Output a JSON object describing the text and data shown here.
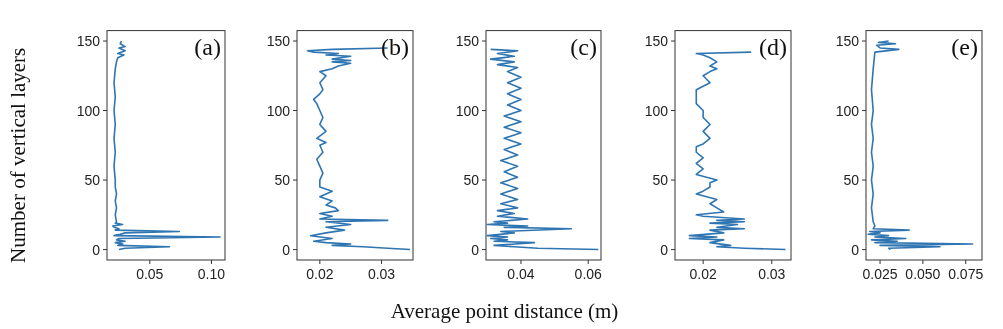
{
  "chart_data": [
    {
      "type": "line",
      "ylabel": "Number of vertical layers",
      "annotations": [
        "(a)"
      ],
      "xlim": [
        0.0153,
        0.111
      ],
      "xticks": [
        0.05,
        {
          "value": 0.1,
          "label": "0.10"
        }
      ],
      "ylim": [
        -7.5,
        157.5
      ],
      "yticks": [
        0,
        50,
        100,
        150
      ],
      "grid": false,
      "series": [
        {
          "color": "#2f75b1",
          "x": [
            0.025,
            0.03,
            0.066,
            0.024,
            0.028,
            0.022,
            0.03,
            0.023,
            0.025,
            0.107,
            0.021,
            0.026,
            0.03,
            0.074,
            0.022,
            0.025,
            0.021,
            0.02,
            0.028,
            0.022,
            0.023,
            0.022,
            0.023,
            0.022,
            0.023,
            0.022,
            0.022,
            0.021,
            0.022,
            0.021,
            0.022,
            0.021,
            0.022,
            0.021,
            0.022,
            0.023,
            0.024,
            0.029,
            0.024,
            0.03,
            0.025,
            0.03,
            0.026,
            0.027
          ],
          "values": [
            0,
            1,
            2,
            3,
            4,
            5,
            6,
            7,
            8,
            9,
            10,
            11,
            12,
            13,
            14,
            15,
            16,
            17,
            18,
            19,
            20,
            25,
            30,
            35,
            40,
            45,
            50,
            60,
            70,
            80,
            90,
            100,
            110,
            120,
            130,
            135,
            138,
            140,
            141,
            143,
            145,
            146,
            148,
            150
          ]
        }
      ]
    },
    {
      "type": "line",
      "annotations": [
        "(b)"
      ],
      "xlim": [
        0.0163,
        0.0351
      ],
      "xticks": [
        0.02,
        0.03
      ],
      "ylim": [
        -7.5,
        157.5
      ],
      "yticks": [
        0,
        50,
        100,
        150
      ],
      "grid": false,
      "series": [
        {
          "color": "#2f75b1",
          "x": [
            0.0346,
            0.031,
            0.027,
            0.022,
            0.025,
            0.021,
            0.019,
            0.022,
            0.0185,
            0.021,
            0.024,
            0.021,
            0.025,
            0.021,
            0.031,
            0.02,
            0.022,
            0.02,
            0.023,
            0.0225,
            0.021,
            0.022,
            0.02,
            0.021,
            0.022,
            0.02,
            0.02,
            0.0205,
            0.02,
            0.0195,
            0.0205,
            0.02,
            0.021,
            0.0195,
            0.021,
            0.02,
            0.0205,
            0.02,
            0.0195,
            0.019,
            0.02,
            0.0205,
            0.02,
            0.021,
            0.02,
            0.022,
            0.023,
            0.025,
            0.022,
            0.025,
            0.022,
            0.025,
            0.021,
            0.023,
            0.019,
            0.018,
            0.022,
            0.031
          ],
          "values": [
            0,
            1,
            2,
            3,
            4,
            5,
            6,
            8,
            10,
            12,
            14,
            16,
            18,
            20,
            21,
            22,
            24,
            26,
            28,
            30,
            32,
            35,
            38,
            40,
            42,
            45,
            50,
            55,
            60,
            65,
            70,
            75,
            77,
            80,
            85,
            90,
            95,
            100,
            105,
            108,
            112,
            115,
            120,
            125,
            128,
            130,
            132,
            134,
            135,
            136,
            137,
            139,
            140,
            141,
            142,
            143,
            144,
            145
          ]
        }
      ]
    },
    {
      "type": "line",
      "annotations": [
        "(c)"
      ],
      "xlabel": "Average point distance (m)",
      "xlim": [
        0.0296,
        0.0638
      ],
      "xticks": [
        0.04,
        0.06
      ],
      "ylim": [
        -7.5,
        157.5
      ],
      "yticks": [
        0,
        50,
        100,
        150
      ],
      "grid": false,
      "series": [
        {
          "color": "#2f75b1",
          "x": [
            0.063,
            0.045,
            0.038,
            0.032,
            0.044,
            0.032,
            0.036,
            0.031,
            0.036,
            0.03,
            0.038,
            0.034,
            0.055,
            0.035,
            0.042,
            0.03,
            0.036,
            0.032,
            0.042,
            0.033,
            0.038,
            0.033,
            0.039,
            0.034,
            0.039,
            0.034,
            0.039,
            0.034,
            0.039,
            0.035,
            0.039,
            0.034,
            0.039,
            0.035,
            0.04,
            0.035,
            0.04,
            0.035,
            0.04,
            0.035,
            0.04,
            0.036,
            0.04,
            0.036,
            0.04,
            0.036,
            0.04,
            0.036,
            0.039,
            0.033,
            0.038,
            0.031,
            0.038,
            0.033,
            0.039,
            0.031
          ],
          "values": [
            0,
            1,
            2,
            3,
            5,
            6,
            7,
            8,
            9,
            10,
            12,
            13,
            15,
            16,
            17,
            18,
            19,
            20,
            22,
            24,
            26,
            28,
            30,
            33,
            36,
            40,
            44,
            48,
            52,
            56,
            60,
            64,
            68,
            72,
            76,
            80,
            84,
            88,
            92,
            96,
            100,
            104,
            108,
            112,
            116,
            120,
            124,
            128,
            131,
            133,
            135,
            137,
            139,
            141,
            143,
            144
          ]
        }
      ]
    },
    {
      "type": "line",
      "annotations": [
        "(d)"
      ],
      "xlim": [
        0.0159,
        0.0328
      ],
      "xticks": [
        0.02,
        0.03
      ],
      "ylim": [
        -7.5,
        157.5
      ],
      "yticks": [
        0,
        50,
        100,
        150
      ],
      "grid": false,
      "series": [
        {
          "color": "#2f75b1",
          "x": [
            0.032,
            0.026,
            0.022,
            0.024,
            0.021,
            0.023,
            0.018,
            0.022,
            0.018,
            0.023,
            0.021,
            0.026,
            0.022,
            0.025,
            0.021,
            0.026,
            0.022,
            0.026,
            0.02,
            0.019,
            0.023,
            0.022,
            0.021,
            0.022,
            0.019,
            0.02,
            0.021,
            0.021,
            0.022,
            0.019,
            0.02,
            0.019,
            0.02,
            0.019,
            0.019,
            0.02,
            0.021,
            0.02,
            0.021,
            0.02,
            0.02,
            0.019,
            0.019,
            0.019,
            0.021,
            0.02,
            0.021,
            0.022,
            0.021,
            0.022,
            0.021,
            0.02,
            0.019,
            0.027
          ],
          "values": [
            0,
            1,
            2,
            3,
            5,
            7,
            8,
            9,
            10,
            12,
            14,
            15,
            16,
            18,
            19,
            20,
            21,
            22,
            24,
            25,
            27,
            30,
            33,
            36,
            40,
            42,
            45,
            48,
            50,
            54,
            58,
            62,
            66,
            70,
            74,
            76,
            80,
            85,
            90,
            95,
            100,
            105,
            110,
            115,
            120,
            125,
            128,
            130,
            132,
            135,
            138,
            140,
            141,
            142
          ]
        }
      ]
    },
    {
      "type": "line",
      "annotations": [
        "(e)"
      ],
      "xlim": [
        0.0168,
        0.0845
      ],
      "xticks": [
        0.025,
        {
          "value": 0.05,
          "label": "0.050"
        },
        0.075
      ],
      "ylim": [
        -7.5,
        157.5
      ],
      "yticks": [
        0,
        50,
        100,
        150
      ],
      "grid": false,
      "series": [
        {
          "color": "#2f75b1",
          "x": [
            0.031,
            0.03,
            0.06,
            0.025,
            0.079,
            0.022,
            0.035,
            0.02,
            0.04,
            0.022,
            0.03,
            0.018,
            0.025,
            0.019,
            0.042,
            0.021,
            0.022,
            0.021,
            0.02,
            0.021,
            0.02,
            0.021,
            0.02,
            0.021,
            0.02,
            0.021,
            0.02,
            0.021,
            0.022,
            0.036,
            0.025,
            0.023,
            0.034,
            0.024,
            0.03
          ],
          "values": [
            0,
            1,
            2,
            3,
            4,
            5,
            6,
            7,
            8,
            9,
            10,
            11,
            12,
            13,
            14,
            15,
            17,
            20,
            30,
            40,
            50,
            60,
            70,
            80,
            90,
            100,
            115,
            130,
            142,
            144,
            145,
            147,
            148,
            149,
            150
          ]
        }
      ]
    }
  ]
}
